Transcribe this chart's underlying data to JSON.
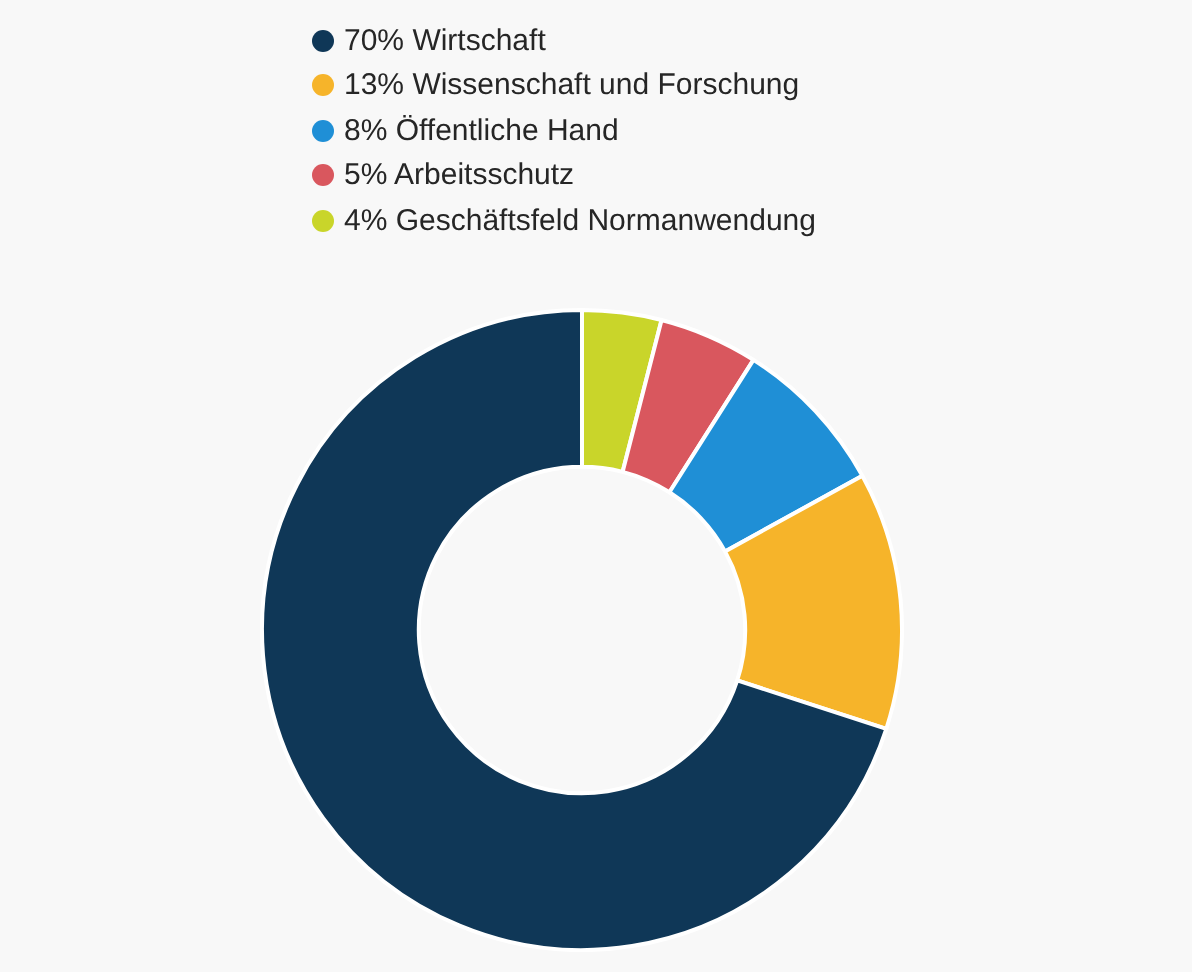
{
  "chart_data": {
    "type": "donut",
    "categories": [
      "70% Wirtschaft",
      "13% Wissenschaft und Forschung",
      "8% Öffentliche Hand",
      "5% Arbeitsschutz",
      "4% Geschäftsfeld Normanwendung"
    ],
    "values": [
      70,
      13,
      8,
      5,
      4
    ],
    "colors": [
      "#0f3757",
      "#f6b42a",
      "#1f8fd6",
      "#d9575e",
      "#c9d52a"
    ],
    "legend": "top"
  }
}
